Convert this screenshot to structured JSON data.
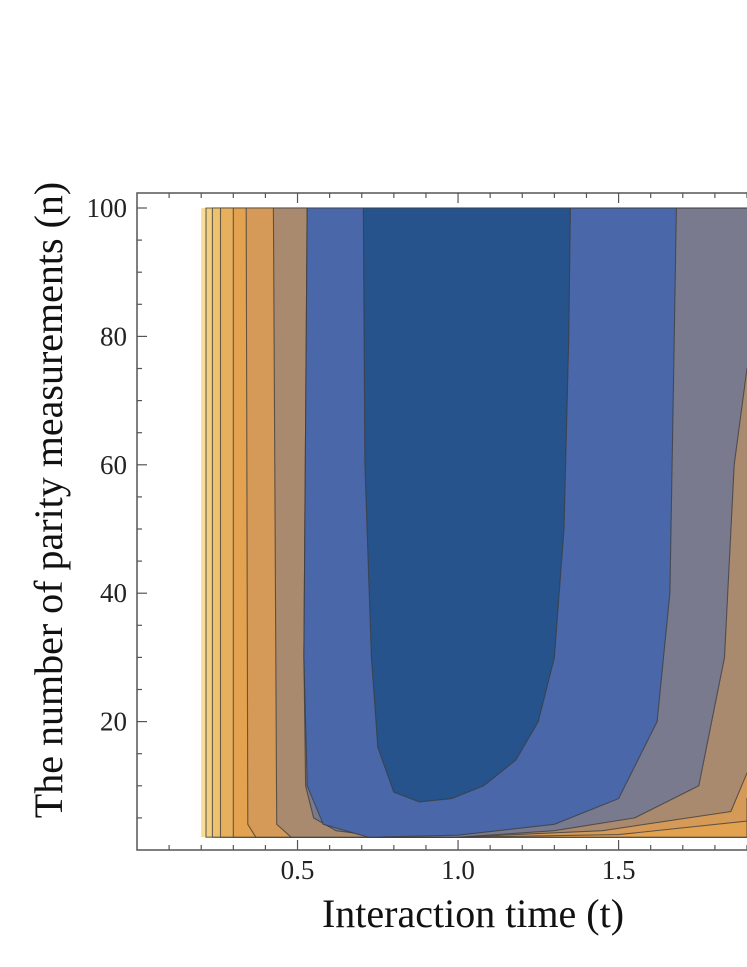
{
  "chart_data": {
    "type": "contour",
    "title": "",
    "xlabel": "Interaction time (t)",
    "ylabel": "The number of parity measurements (n)",
    "xlim": [
      0.0,
      1.9
    ],
    "ylim": [
      0,
      100
    ],
    "x_ticks": [
      0.5,
      1.0,
      1.5
    ],
    "x_tick_labels": [
      "0.5",
      "1.0",
      "1.5"
    ],
    "y_ticks": [
      20,
      40,
      60,
      80,
      100
    ],
    "y_tick_labels": [
      "20",
      "40",
      "60",
      "80",
      "100"
    ],
    "grid": false,
    "legend": "none",
    "data_region": {
      "x_min": 0.2,
      "n_min": 2,
      "n_max": 100
    },
    "regions": [
      {
        "level": 9,
        "color": "#F7DC9A"
      },
      {
        "level": 8,
        "color": "#F2CF82"
      },
      {
        "level": 7,
        "color": "#EDC16E"
      },
      {
        "level": 6,
        "color": "#E7B05D"
      },
      {
        "level": 5,
        "color": "#E3A24F"
      },
      {
        "level": 4,
        "color": "#D69A58"
      },
      {
        "level": 3,
        "color": "#A98A6E"
      },
      {
        "level": 2,
        "color": "#7A7A8F"
      },
      {
        "level": 1,
        "color": "#4A68A9"
      },
      {
        "level": 0,
        "color": "#26538C"
      }
    ],
    "contours": [
      {
        "level": 8,
        "boundary": [
          {
            "t": 0.215,
            "n": 100
          },
          {
            "t": 0.215,
            "n": 2
          },
          {
            "t": 1.9,
            "n": 2
          },
          {
            "t": 1.9,
            "n": 2.6
          }
        ]
      },
      {
        "level": 7,
        "boundary": [
          {
            "t": 0.235,
            "n": 100
          },
          {
            "t": 0.235,
            "n": 2
          },
          {
            "t": 1.9,
            "n": 2
          },
          {
            "t": 1.9,
            "n": 3.3
          }
        ]
      },
      {
        "level": 6,
        "boundary": [
          {
            "t": 0.26,
            "n": 100
          },
          {
            "t": 0.26,
            "n": 2
          },
          {
            "t": 1.9,
            "n": 2
          },
          {
            "t": 1.9,
            "n": 4.0
          }
        ]
      },
      {
        "level": 5,
        "boundary": [
          {
            "t": 0.3,
            "n": 100
          },
          {
            "t": 0.3,
            "n": 2
          },
          {
            "t": 1.9,
            "n": 2
          },
          {
            "t": 1.9,
            "n": 5.5
          }
        ]
      },
      {
        "level": 4,
        "boundary": [
          {
            "t": 0.34,
            "n": 100
          },
          {
            "t": 0.345,
            "n": 4
          },
          {
            "t": 0.37,
            "n": 2
          },
          {
            "t": 1.0,
            "n": 2
          },
          {
            "t": 1.5,
            "n": 2.4
          },
          {
            "t": 1.9,
            "n": 4.5
          },
          {
            "t": 1.9,
            "n": 8
          }
        ]
      },
      {
        "level": 3,
        "boundary": [
          {
            "t": 0.425,
            "n": 100
          },
          {
            "t": 0.435,
            "n": 4
          },
          {
            "t": 0.48,
            "n": 2
          },
          {
            "t": 1.0,
            "n": 2
          },
          {
            "t": 1.45,
            "n": 3
          },
          {
            "t": 1.85,
            "n": 6
          },
          {
            "t": 1.9,
            "n": 12
          }
        ]
      },
      {
        "level": 2,
        "boundary": [
          {
            "t": 0.53,
            "n": 100
          },
          {
            "t": 0.52,
            "n": 30
          },
          {
            "t": 0.525,
            "n": 10
          },
          {
            "t": 0.55,
            "n": 5
          },
          {
            "t": 0.62,
            "n": 3
          },
          {
            "t": 0.78,
            "n": 2
          },
          {
            "t": 1.0,
            "n": 2
          },
          {
            "t": 1.3,
            "n": 3
          },
          {
            "t": 1.55,
            "n": 5
          },
          {
            "t": 1.75,
            "n": 10
          },
          {
            "t": 1.83,
            "n": 30
          },
          {
            "t": 1.86,
            "n": 60
          },
          {
            "t": 1.9,
            "n": 75
          }
        ]
      },
      {
        "level": 1,
        "boundary": [
          {
            "t": 0.53,
            "n": 100
          },
          {
            "t": 0.52,
            "n": 30
          },
          {
            "t": 0.53,
            "n": 10
          },
          {
            "t": 0.58,
            "n": 4
          },
          {
            "t": 0.72,
            "n": 2
          },
          {
            "t": 1.0,
            "n": 2.3
          },
          {
            "t": 1.3,
            "n": 4
          },
          {
            "t": 1.5,
            "n": 8
          },
          {
            "t": 1.62,
            "n": 20
          },
          {
            "t": 1.66,
            "n": 40
          },
          {
            "t": 1.67,
            "n": 70
          },
          {
            "t": 1.68,
            "n": 100
          }
        ]
      },
      {
        "level": 0,
        "boundary": [
          {
            "t": 0.705,
            "n": 100
          },
          {
            "t": 0.71,
            "n": 60
          },
          {
            "t": 0.73,
            "n": 30
          },
          {
            "t": 0.75,
            "n": 16
          },
          {
            "t": 0.8,
            "n": 9
          },
          {
            "t": 0.88,
            "n": 7.5
          },
          {
            "t": 0.98,
            "n": 8
          },
          {
            "t": 1.08,
            "n": 10
          },
          {
            "t": 1.18,
            "n": 14
          },
          {
            "t": 1.25,
            "n": 20
          },
          {
            "t": 1.3,
            "n": 30
          },
          {
            "t": 1.33,
            "n": 50
          },
          {
            "t": 1.345,
            "n": 80
          },
          {
            "t": 1.35,
            "n": 100
          }
        ]
      }
    ]
  }
}
